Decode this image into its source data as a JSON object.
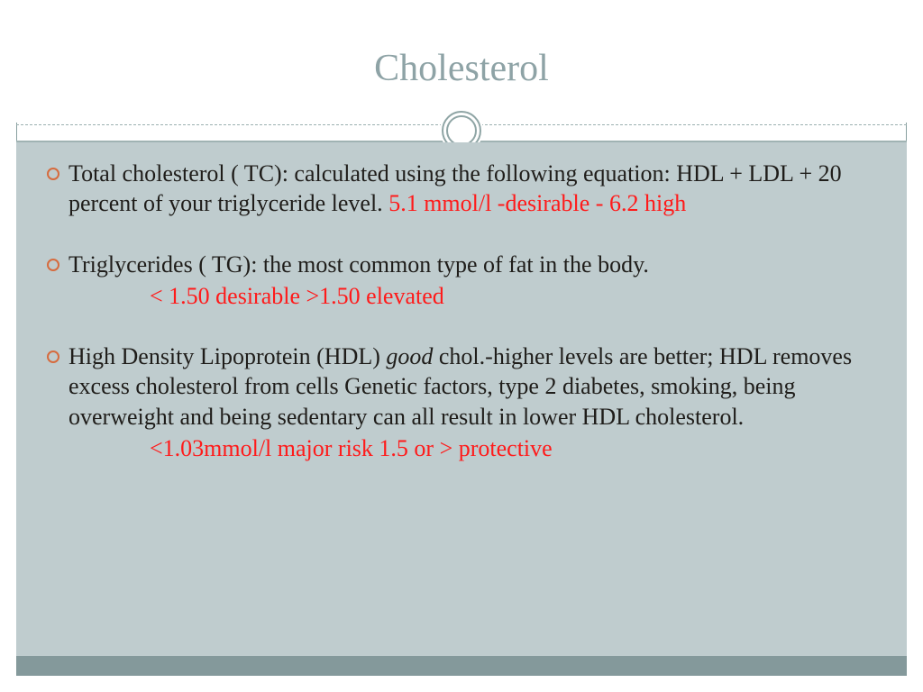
{
  "slide": {
    "title": "Cholesterol",
    "colors": {
      "title_text": "#8ea3a6",
      "body_bg": "#bfccce",
      "bottom_band": "#84999b",
      "bullet_ring": "#d66b3e",
      "highlight_text": "#ff1a1a",
      "body_text": "#1f1d1a",
      "border": "#88a0a0"
    },
    "typography": {
      "title_fontsize": 42,
      "body_fontsize": 26,
      "font_family": "Georgia, serif"
    },
    "bullets": [
      {
        "main_a": "Total cholesterol ( TC): calculated using the following equation: HDL + LDL + 20 percent of your triglyceride level.  ",
        "highlight_inline": "5.1 mmol/l -desirable   -      6.2 high",
        "sub": ""
      },
      {
        "main_a": "Triglycerides ( TG): the most common type of fat in the body.",
        "highlight_inline": "",
        "sub": "< 1.50 desirable         >1.50 elevated"
      },
      {
        "main_a": "High Density Lipoprotein (HDL) ",
        "italic": "good",
        "main_b": " chol.-higher levels are better; HDL removes excess cholesterol from cells Genetic factors, type 2 diabetes, smoking, being overweight and being sedentary can all result in lower HDL cholesterol.",
        "sub": "<1.03mmol/l major risk       1.5 or > protective"
      }
    ]
  }
}
